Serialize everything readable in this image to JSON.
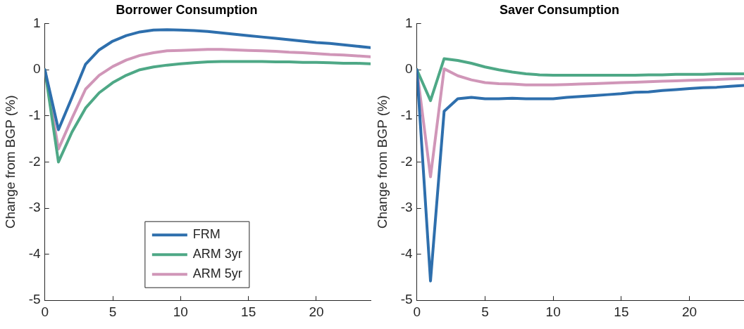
{
  "chart_data": [
    {
      "type": "line",
      "title": "Borrower Consumption",
      "ylabel": "Change from BGP (%)",
      "x": [
        0,
        1,
        2,
        3,
        4,
        5,
        6,
        7,
        8,
        9,
        10,
        11,
        12,
        13,
        14,
        15,
        16,
        17,
        18,
        19,
        20,
        21,
        22,
        23,
        24
      ],
      "xlim": [
        0,
        24
      ],
      "xticks": [
        0,
        5,
        10,
        15,
        20
      ],
      "ylim": [
        -5,
        1
      ],
      "yticks": [
        -5,
        -4,
        -3,
        -2,
        -1,
        0,
        1
      ],
      "grid": false,
      "legend": "bottom",
      "marker": "none",
      "line_style": "solid",
      "series": [
        {
          "name": "FRM",
          "color": "#2e6fad",
          "values": [
            0,
            -1.3,
            -0.6,
            0.12,
            0.43,
            0.62,
            0.74,
            0.82,
            0.86,
            0.87,
            0.86,
            0.85,
            0.83,
            0.8,
            0.77,
            0.74,
            0.71,
            0.68,
            0.65,
            0.62,
            0.59,
            0.57,
            0.54,
            0.51,
            0.48
          ]
        },
        {
          "name": "ARM 3yr",
          "color": "#4ea886",
          "values": [
            0,
            -2.0,
            -1.35,
            -0.83,
            -0.5,
            -0.28,
            -0.12,
            0,
            0.06,
            0.1,
            0.13,
            0.15,
            0.17,
            0.18,
            0.18,
            0.18,
            0.18,
            0.17,
            0.17,
            0.16,
            0.16,
            0.15,
            0.14,
            0.14,
            0.13
          ]
        },
        {
          "name": "ARM 5yr",
          "color": "#d096b8",
          "values": [
            0,
            -1.72,
            -1.05,
            -0.42,
            -0.12,
            0.07,
            0.21,
            0.31,
            0.37,
            0.41,
            0.42,
            0.43,
            0.44,
            0.44,
            0.43,
            0.42,
            0.41,
            0.4,
            0.38,
            0.37,
            0.35,
            0.33,
            0.32,
            0.3,
            0.28
          ]
        }
      ]
    },
    {
      "type": "line",
      "title": "Saver Consumption",
      "ylabel": "Change from BGP (%)",
      "x": [
        0,
        1,
        2,
        3,
        4,
        5,
        6,
        7,
        8,
        9,
        10,
        11,
        12,
        13,
        14,
        15,
        16,
        17,
        18,
        19,
        20,
        21,
        22,
        23,
        24
      ],
      "xlim": [
        0,
        24
      ],
      "xticks": [
        0,
        5,
        10,
        15,
        20
      ],
      "ylim": [
        -5,
        1
      ],
      "yticks": [
        -5,
        -4,
        -3,
        -2,
        -1,
        0,
        1
      ],
      "grid": false,
      "marker": "none",
      "line_style": "solid",
      "series": [
        {
          "color": "#2e6fad",
          "values": [
            0,
            -4.58,
            -0.9,
            -0.63,
            -0.6,
            -0.63,
            -0.63,
            -0.62,
            -0.63,
            -0.63,
            -0.63,
            -0.6,
            -0.58,
            -0.56,
            -0.54,
            -0.52,
            -0.49,
            -0.48,
            -0.45,
            -0.43,
            -0.41,
            -0.39,
            -0.38,
            -0.36,
            -0.34
          ]
        },
        {
          "color": "#4ea886",
          "values": [
            0,
            -0.67,
            0.24,
            0.2,
            0.14,
            0.06,
            0,
            -0.05,
            -0.09,
            -0.11,
            -0.12,
            -0.12,
            -0.12,
            -0.12,
            -0.12,
            -0.12,
            -0.12,
            -0.11,
            -0.11,
            -0.1,
            -0.1,
            -0.1,
            -0.09,
            -0.09,
            -0.09
          ]
        },
        {
          "color": "#d096b8",
          "values": [
            0,
            -2.32,
            0.02,
            -0.13,
            -0.22,
            -0.28,
            -0.3,
            -0.31,
            -0.33,
            -0.33,
            -0.33,
            -0.32,
            -0.31,
            -0.3,
            -0.29,
            -0.28,
            -0.27,
            -0.26,
            -0.25,
            -0.24,
            -0.23,
            -0.22,
            -0.21,
            -0.2,
            -0.19
          ]
        }
      ]
    }
  ]
}
